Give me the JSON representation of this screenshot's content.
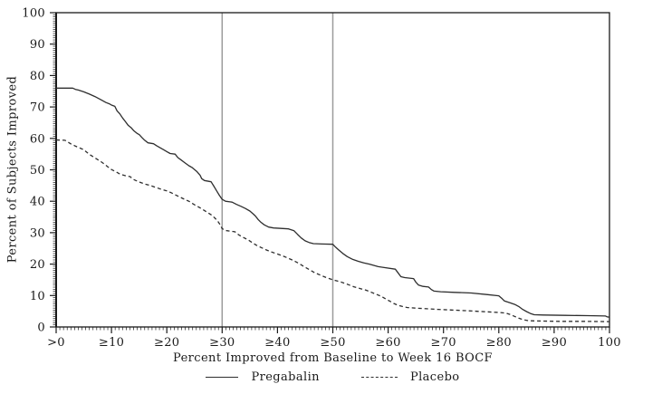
{
  "chart_data": {
    "type": "line",
    "title": "",
    "xlabel": "Percent Improved from Baseline to Week 16 BOCF",
    "ylabel": "Percent of Subjects Improved",
    "xlim": [
      0,
      100
    ],
    "ylim": [
      0,
      100
    ],
    "x_tick_values": [
      0,
      10,
      20,
      30,
      40,
      50,
      60,
      70,
      80,
      90,
      100
    ],
    "x_tick_labels": [
      ">0",
      "≥10",
      "≥20",
      "≥30",
      "≥40",
      "≥50",
      "≥60",
      "≥70",
      "≥80",
      "≥90",
      "100"
    ],
    "y_tick_values": [
      0,
      10,
      20,
      30,
      40,
      50,
      60,
      70,
      80,
      90,
      100
    ],
    "y_tick_labels": [
      "0",
      "10",
      "20",
      "30",
      "40",
      "50",
      "60",
      "70",
      "80",
      "90",
      "100"
    ],
    "minor_ticks_between_major": 14,
    "grid": false,
    "reference_lines_x": [
      30,
      50
    ],
    "legend_position": "bottom-center",
    "colors": {
      "curve": "#2e2e2e",
      "frame": "#1a1a1a",
      "reference_line": "#9b9b9b",
      "text": "#1a1a1a",
      "background": "#ffffff"
    },
    "series": [
      {
        "name": "Pregabalin",
        "style": "solid",
        "points": [
          [
            0,
            76
          ],
          [
            3,
            76
          ],
          [
            3.5,
            75.6
          ],
          [
            4,
            75.4
          ],
          [
            5,
            74.8
          ],
          [
            6,
            74.1
          ],
          [
            7,
            73.3
          ],
          [
            8,
            72.4
          ],
          [
            9,
            71.4
          ],
          [
            9.6,
            71
          ],
          [
            10,
            70.6
          ],
          [
            10.6,
            70.2
          ],
          [
            11,
            68.8
          ],
          [
            11.5,
            67.8
          ],
          [
            12,
            66.5
          ],
          [
            12.4,
            65.6
          ],
          [
            13,
            64.2
          ],
          [
            13.6,
            63.3
          ],
          [
            14,
            62.5
          ],
          [
            14.7,
            61.5
          ],
          [
            15,
            61.2
          ],
          [
            15.5,
            60.3
          ],
          [
            16,
            59.4
          ],
          [
            16.6,
            58.6
          ],
          [
            17.6,
            58.3
          ],
          [
            18.2,
            57.6
          ],
          [
            18.8,
            57
          ],
          [
            19.5,
            56.3
          ],
          [
            20,
            55.8
          ],
          [
            20.6,
            55.2
          ],
          [
            21.5,
            55
          ],
          [
            22,
            53.9
          ],
          [
            22.6,
            53.1
          ],
          [
            23.2,
            52.3
          ],
          [
            24,
            51.3
          ],
          [
            24.6,
            50.7
          ],
          [
            25.4,
            49.5
          ],
          [
            26,
            48.3
          ],
          [
            26.3,
            47.2
          ],
          [
            26.8,
            46.6
          ],
          [
            28,
            46.2
          ],
          [
            28.5,
            44.8
          ],
          [
            29,
            43.3
          ],
          [
            29.5,
            41.9
          ],
          [
            30,
            40.6
          ],
          [
            30.6,
            40
          ],
          [
            31.8,
            39.7
          ],
          [
            32.6,
            39
          ],
          [
            33.4,
            38.4
          ],
          [
            34.2,
            37.7
          ],
          [
            35,
            36.9
          ],
          [
            35.6,
            36
          ],
          [
            36,
            35.3
          ],
          [
            36.5,
            34.2
          ],
          [
            37,
            33.3
          ],
          [
            37.6,
            32.5
          ],
          [
            38.4,
            31.8
          ],
          [
            39.3,
            31.5
          ],
          [
            42,
            31.2
          ],
          [
            43,
            30.6
          ],
          [
            43.6,
            29.5
          ],
          [
            44.3,
            28.3
          ],
          [
            45,
            27.4
          ],
          [
            45.7,
            26.9
          ],
          [
            46.5,
            26.5
          ],
          [
            48,
            26.4
          ],
          [
            50,
            26.3
          ],
          [
            50.5,
            25.4
          ],
          [
            51,
            24.6
          ],
          [
            51.8,
            23.4
          ],
          [
            52.6,
            22.4
          ],
          [
            53.6,
            21.5
          ],
          [
            54.6,
            20.9
          ],
          [
            55.6,
            20.4
          ],
          [
            56.6,
            20
          ],
          [
            57.4,
            19.6
          ],
          [
            58.2,
            19.2
          ],
          [
            59,
            19
          ],
          [
            61.3,
            18.4
          ],
          [
            61.8,
            17.2
          ],
          [
            62.3,
            16
          ],
          [
            63,
            15.7
          ],
          [
            64.6,
            15.4
          ],
          [
            65,
            14.3
          ],
          [
            65.5,
            13.3
          ],
          [
            66.3,
            12.9
          ],
          [
            67.3,
            12.7
          ],
          [
            67.8,
            11.9
          ],
          [
            68.3,
            11.4
          ],
          [
            69.5,
            11.2
          ],
          [
            72,
            11
          ],
          [
            75,
            10.8
          ],
          [
            78,
            10.3
          ],
          [
            80,
            9.9
          ],
          [
            80.6,
            9
          ],
          [
            81,
            8.3
          ],
          [
            82,
            7.7
          ],
          [
            83,
            7.1
          ],
          [
            83.6,
            6.5
          ],
          [
            84.3,
            5.6
          ],
          [
            85,
            4.9
          ],
          [
            85.7,
            4.3
          ],
          [
            86.4,
            3.9
          ],
          [
            88,
            3.8
          ],
          [
            92,
            3.7
          ],
          [
            96,
            3.6
          ],
          [
            99.3,
            3.5
          ],
          [
            99.6,
            3.2
          ],
          [
            100,
            3.1
          ]
        ]
      },
      {
        "name": "Placebo",
        "style": "dashed",
        "points": [
          [
            0,
            59.5
          ],
          [
            1.6,
            59.4
          ],
          [
            2,
            59
          ],
          [
            2.6,
            58.3
          ],
          [
            3.4,
            57.6
          ],
          [
            4.2,
            57
          ],
          [
            5,
            56.4
          ],
          [
            5.6,
            55.5
          ],
          [
            6.2,
            54.7
          ],
          [
            7,
            53.8
          ],
          [
            8,
            52.7
          ],
          [
            8.6,
            52
          ],
          [
            9.3,
            51
          ],
          [
            10,
            50.1
          ],
          [
            10.8,
            49.4
          ],
          [
            11.6,
            48.6
          ],
          [
            12.6,
            48.1
          ],
          [
            13.4,
            47.8
          ],
          [
            13.8,
            47.1
          ],
          [
            14.4,
            46.6
          ],
          [
            15.2,
            46
          ],
          [
            16,
            45.5
          ],
          [
            17,
            45
          ],
          [
            18,
            44.4
          ],
          [
            19,
            43.8
          ],
          [
            20,
            43.3
          ],
          [
            20.8,
            42.7
          ],
          [
            21.6,
            42
          ],
          [
            22.4,
            41.3
          ],
          [
            23.2,
            40.6
          ],
          [
            24,
            40
          ],
          [
            24.8,
            39.1
          ],
          [
            25.6,
            38.3
          ],
          [
            26.4,
            37.5
          ],
          [
            27.2,
            36.6
          ],
          [
            28,
            35.7
          ],
          [
            28.6,
            34.8
          ],
          [
            29.2,
            33.7
          ],
          [
            29.6,
            32.6
          ],
          [
            30,
            31.3
          ],
          [
            30.6,
            30.7
          ],
          [
            32.3,
            30.3
          ],
          [
            33,
            29.3
          ],
          [
            33.8,
            28.5
          ],
          [
            34.6,
            27.8
          ],
          [
            35.4,
            26.9
          ],
          [
            36.2,
            26
          ],
          [
            37,
            25.3
          ],
          [
            38,
            24.5
          ],
          [
            39,
            23.8
          ],
          [
            39.8,
            23.3
          ],
          [
            40.8,
            22.7
          ],
          [
            41.8,
            22
          ],
          [
            42.8,
            21.2
          ],
          [
            43.8,
            20.3
          ],
          [
            44.8,
            19.2
          ],
          [
            45.8,
            18.2
          ],
          [
            46.8,
            17.2
          ],
          [
            48,
            16.3
          ],
          [
            49,
            15.6
          ],
          [
            50,
            15
          ],
          [
            51.3,
            14.4
          ],
          [
            52.6,
            13.6
          ],
          [
            53.8,
            12.8
          ],
          [
            55,
            12.2
          ],
          [
            56,
            11.7
          ],
          [
            57,
            11
          ],
          [
            58,
            10.3
          ],
          [
            58.7,
            9.8
          ],
          [
            59.5,
            9
          ],
          [
            60.3,
            8.2
          ],
          [
            61,
            7.5
          ],
          [
            61.8,
            6.9
          ],
          [
            62.6,
            6.5
          ],
          [
            63.4,
            6.2
          ],
          [
            65,
            6
          ],
          [
            67,
            5.8
          ],
          [
            69,
            5.6
          ],
          [
            71.5,
            5.4
          ],
          [
            74,
            5.2
          ],
          [
            77,
            4.9
          ],
          [
            80,
            4.6
          ],
          [
            81.3,
            4.4
          ],
          [
            82,
            4
          ],
          [
            82.8,
            3.4
          ],
          [
            83.6,
            2.8
          ],
          [
            84.4,
            2.3
          ],
          [
            85.4,
            2
          ],
          [
            87,
            1.9
          ],
          [
            91,
            1.8
          ],
          [
            95,
            1.8
          ],
          [
            100,
            1.7
          ]
        ]
      }
    ]
  }
}
